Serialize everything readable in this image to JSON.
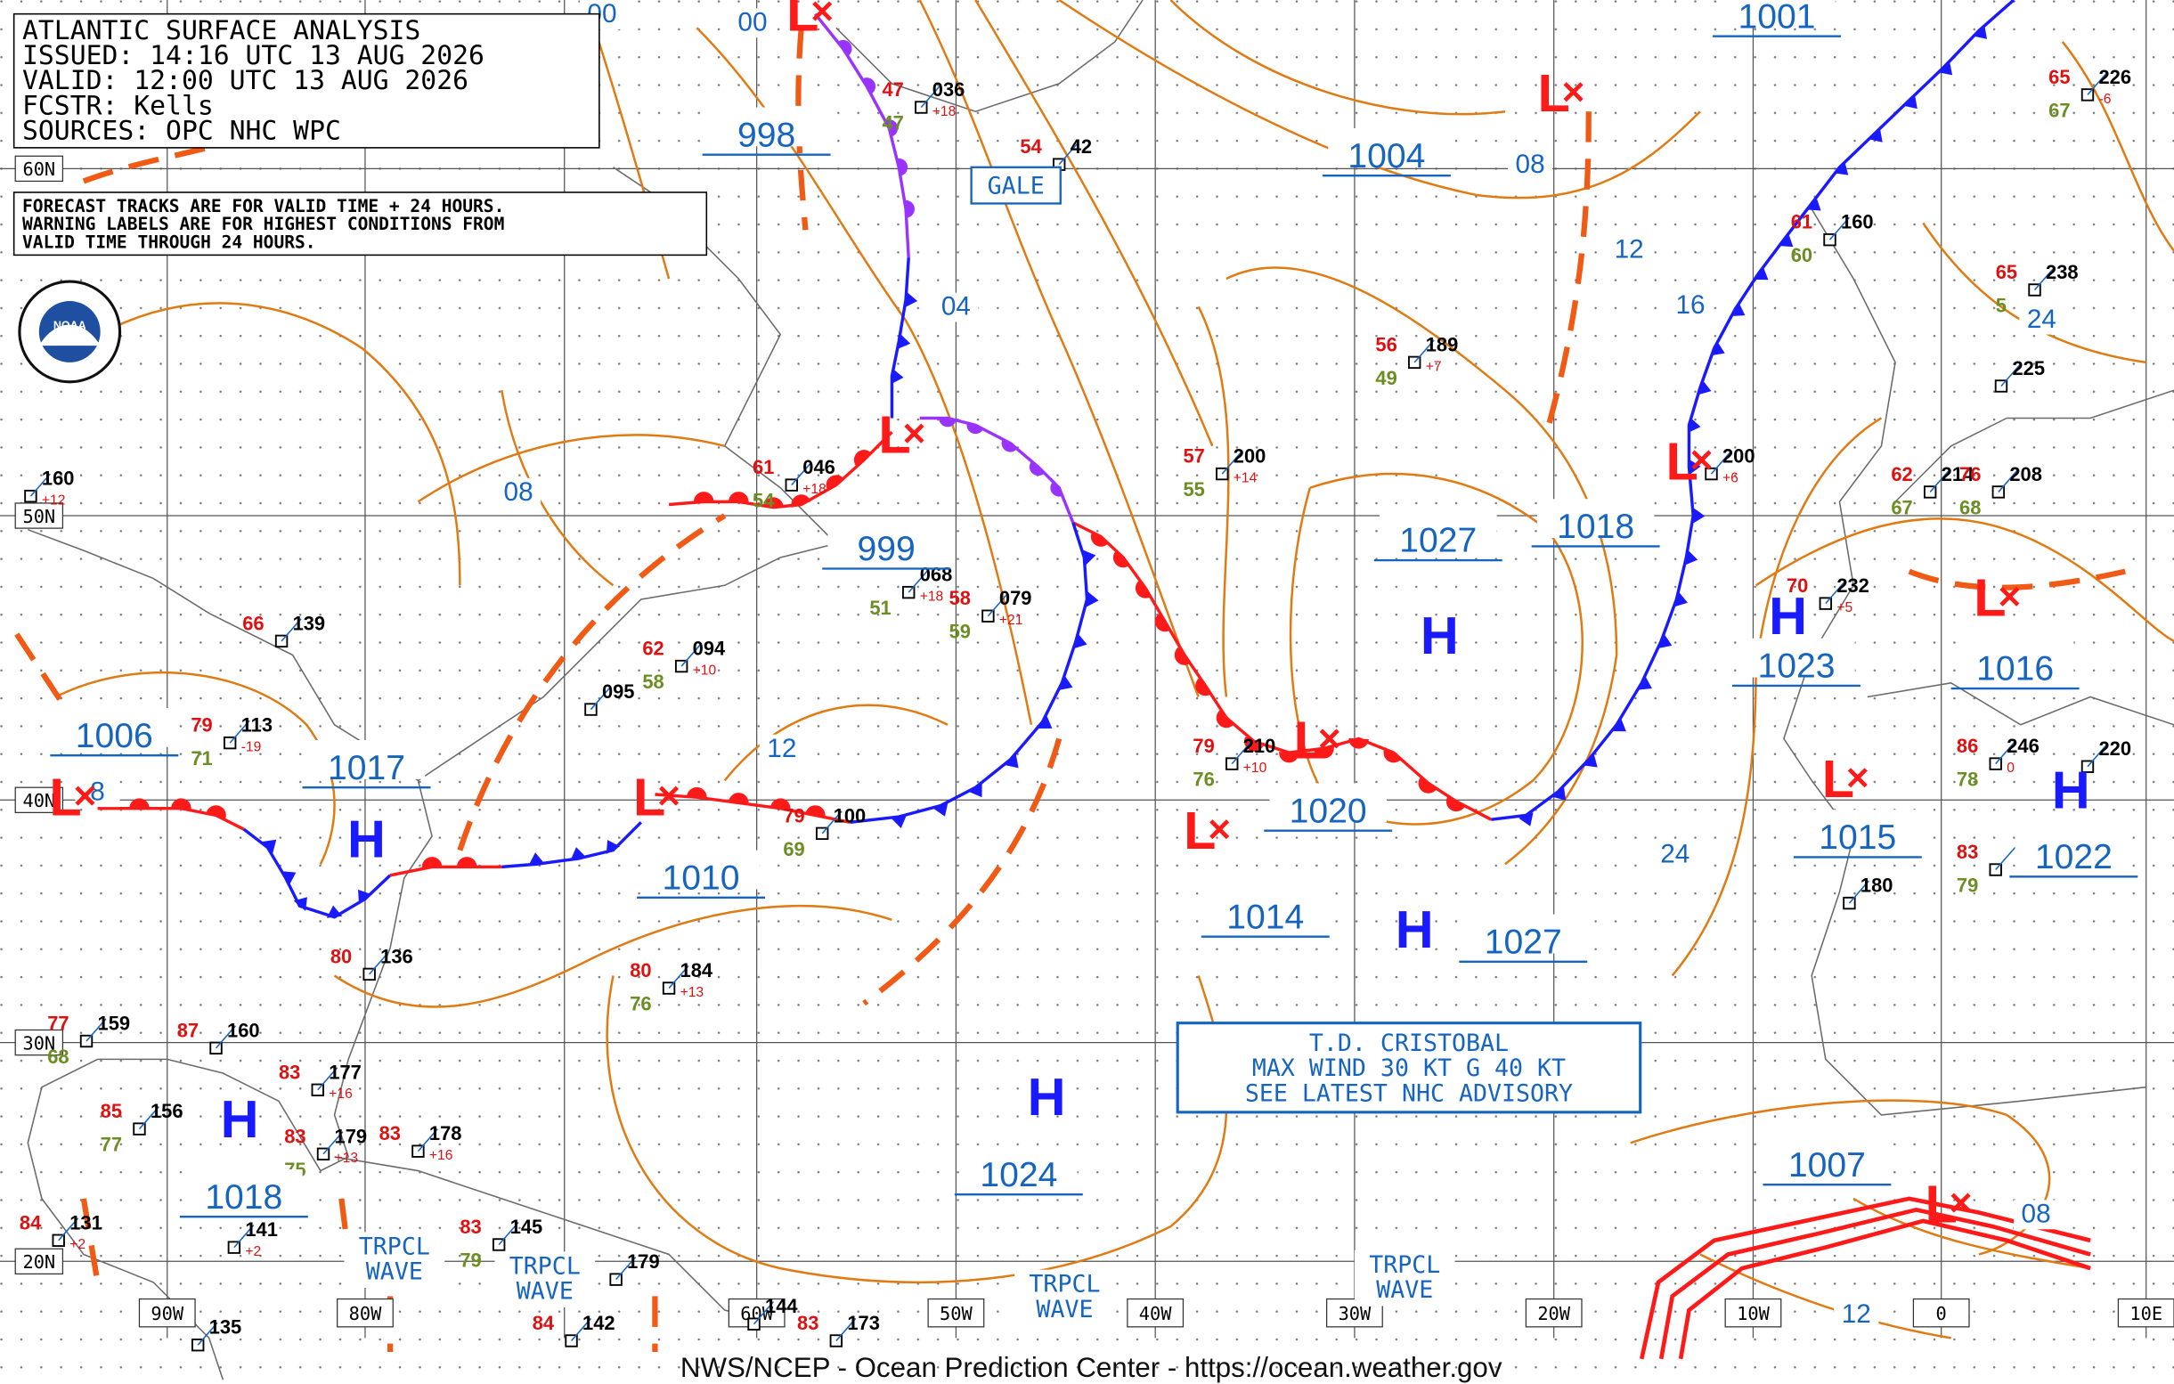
{
  "header": {
    "lines": [
      "ATLANTIC SURFACE ANALYSIS",
      "ISSUED: 14:16 UTC 13 AUG 2026",
      "VALID: 12:00 UTC 13 AUG 2026",
      "FCSTR: Kells",
      "SOURCES: OPC NHC WPC"
    ]
  },
  "notice": {
    "lines": [
      "FORECAST TRACKS ARE FOR VALID TIME + 24 HOURS.",
      "WARNING LABELS ARE FOR HIGHEST CONDITIONS FROM",
      "VALID TIME THROUGH 24 HOURS."
    ]
  },
  "logo": "NOAA",
  "footer": "NWS/NCEP - Ocean Prediction Center - https://ocean.weather.gov",
  "latitudes": [
    "60N",
    "50N",
    "40N",
    "30N",
    "20N"
  ],
  "longitudes": [
    "90W",
    "80W",
    "60W",
    "50W",
    "40W",
    "30W",
    "20W",
    "10W",
    "0",
    "10E"
  ],
  "pressure_labels": [
    "998",
    "1004",
    "1001",
    "999",
    "1027",
    "1018",
    "1006",
    "1017",
    "1010",
    "1020",
    "1014",
    "1027",
    "1023",
    "1016",
    "1015",
    "1022",
    "1024",
    "1018",
    "1007"
  ],
  "isobar_labels": [
    "00",
    "00",
    "08",
    "12",
    "16",
    "04",
    "08",
    "12",
    "24",
    "24",
    "08",
    "12",
    "8"
  ],
  "highs": [
    "H",
    "H",
    "H",
    "H",
    "H",
    "H",
    "H"
  ],
  "lows": [
    "L",
    "L",
    "L",
    "L",
    "L",
    "L",
    "L",
    "L",
    "L",
    "L",
    "L"
  ],
  "gale": "GALE",
  "tropical_waves": [
    [
      "TRPCL",
      "WAVE"
    ],
    [
      "TRPCL",
      "WAVE"
    ],
    [
      "TRPCL",
      "WAVE"
    ],
    [
      "TRPCL",
      "WAVE"
    ]
  ],
  "advisory": [
    "T.D. CRISTOBAL",
    "MAX WIND 30 KT G 40 KT",
    "SEE LATEST NHC ADVISORY"
  ],
  "stations": [
    {
      "pressure": "160",
      "tendency": "+12"
    },
    {
      "temp": "66",
      "pressure": "139"
    },
    {
      "temp": "79",
      "dew": "71",
      "pressure": "113",
      "tendency": "-19"
    },
    {
      "pressure": "095"
    },
    {
      "temp": "62",
      "dew": "58",
      "pressure": "094",
      "tendency": "+10"
    },
    {
      "temp": "61",
      "dew": "54",
      "pressure": "046",
      "tendency": "+18"
    },
    {
      "temp": "47",
      "dew": "47",
      "pressure": "036",
      "tendency": "+18"
    },
    {
      "temp": "54",
      "pressure": "42"
    },
    {
      "dew": "51",
      "pressure": "068",
      "tendency": "+18"
    },
    {
      "temp": "58",
      "dew": "59",
      "pressure": "079",
      "tendency": "+21"
    },
    {
      "temp": "79",
      "dew": "69",
      "pressure": "100"
    },
    {
      "temp": "80",
      "dew": "76",
      "pressure": "184",
      "tendency": "+13"
    },
    {
      "temp": "57",
      "dew": "55",
      "pressure": "200",
      "tendency": "+14"
    },
    {
      "temp": "79",
      "dew": "76",
      "pressure": "210",
      "tendency": "+10"
    },
    {
      "temp": "56",
      "dew": "49",
      "pressure": "189",
      "tendency": "+7"
    },
    {
      "pressure": "200",
      "tendency": "+6"
    },
    {
      "temp": "61",
      "dew": "60",
      "pressure": "160"
    },
    {
      "temp": "65",
      "dew": "5",
      "pressure": "238"
    },
    {
      "pressure": "225"
    },
    {
      "temp": "62",
      "dew": "67",
      "pressure": "214"
    },
    {
      "temp": "76",
      "dew": "68",
      "pressure": "208"
    },
    {
      "temp": "70",
      "pressure": "232",
      "tendency": "+5"
    },
    {
      "temp": "86",
      "dew": "78",
      "pressure": "246",
      "tendency": "0"
    },
    {
      "pressure": "220"
    },
    {
      "temp": "83",
      "dew": "79"
    },
    {
      "pressure": "180"
    },
    {
      "temp": "65",
      "dew": "67",
      "pressure": "226",
      "tendency": "-6"
    },
    {
      "temp": "80",
      "pressure": "136"
    },
    {
      "temp": "77",
      "dew": "68",
      "pressure": "159"
    },
    {
      "temp": "87",
      "pressure": "160"
    },
    {
      "temp": "83",
      "pressure": "177",
      "tendency": "+16"
    },
    {
      "temp": "85",
      "dew": "77",
      "pressure": "156"
    },
    {
      "temp": "83",
      "dew": "75",
      "pressure": "179",
      "tendency": "+13"
    },
    {
      "temp": "83",
      "pressure": "178",
      "tendency": "+16"
    },
    {
      "temp": "84",
      "pressure": "131",
      "tendency": "+2"
    },
    {
      "pressure": "141",
      "tendency": "+2"
    },
    {
      "temp": "83",
      "dew": "79",
      "pressure": "145"
    },
    {
      "pressure": "179"
    },
    {
      "pressure": "144"
    },
    {
      "temp": "83",
      "pressure": "173"
    },
    {
      "pressure": "135"
    },
    {
      "temp": "84",
      "pressure": "142"
    }
  ]
}
